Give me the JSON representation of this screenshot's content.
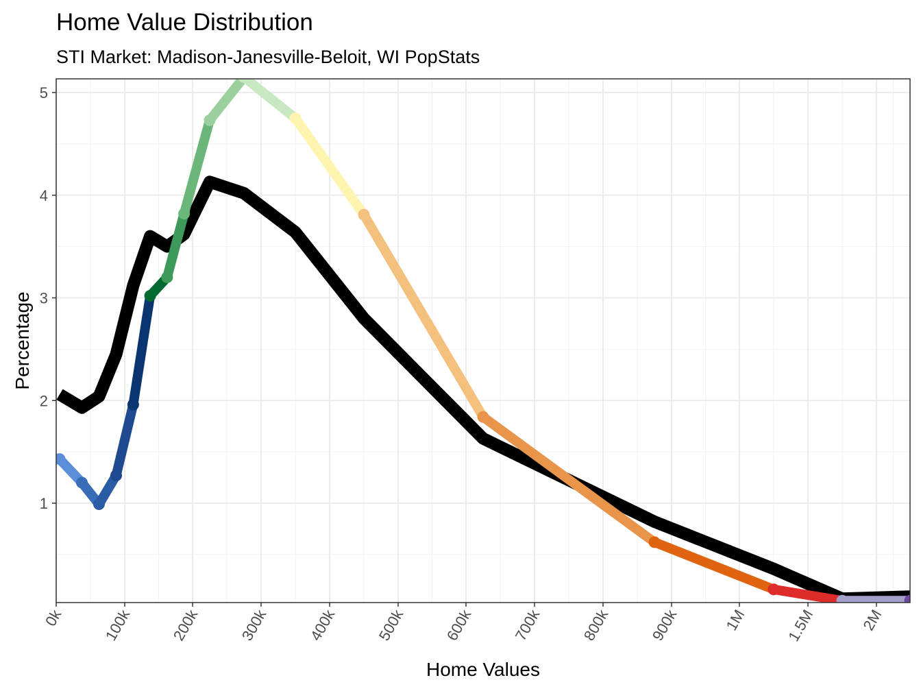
{
  "chart_data": {
    "type": "line",
    "title": "Home Value Distribution",
    "subtitle": "STI Market: Madison-Janesville-Beloit, WI PopStats",
    "xlabel": "Home Values",
    "ylabel": "Percentage",
    "x_ticks": [
      "0k",
      "100k",
      "200k",
      "300k",
      "400k",
      "500k",
      "600k",
      "700k",
      "800k",
      "900k",
      "1M",
      "1.5M",
      "2M"
    ],
    "y_ticks": [
      "1",
      "2",
      "3",
      "4",
      "5"
    ],
    "ylim": [
      0.05,
      5.15
    ],
    "grid": true,
    "legend": "none",
    "series": [
      {
        "color": "#000000",
        "points": [
          {
            "x": "5k",
            "y": 2.06
          },
          {
            "x": "37.5k",
            "y": 1.93
          },
          {
            "x": "62.5k",
            "y": 2.04
          },
          {
            "x": "87.5k",
            "y": 2.45
          },
          {
            "x": "112.5k",
            "y": 3.12
          },
          {
            "x": "137.5k",
            "y": 3.6
          },
          {
            "x": "162.5k",
            "y": 3.5
          },
          {
            "x": "187.5k",
            "y": 3.62
          },
          {
            "x": "225k",
            "y": 4.13
          },
          {
            "x": "275k",
            "y": 4.02
          },
          {
            "x": "350k",
            "y": 3.64
          },
          {
            "x": "450k",
            "y": 2.8
          },
          {
            "x": "625k",
            "y": 1.63
          },
          {
            "x": "875k",
            "y": 0.82
          },
          {
            "x": "1.25M",
            "y": 0.36
          },
          {
            "x": "1.75M",
            "y": 0.07
          },
          {
            "x": "2M+",
            "y": 0.09
          }
        ]
      },
      {
        "points": [
          {
            "x": "5k",
            "y": 1.43,
            "color": "#5b8ed8"
          },
          {
            "x": "37.5k",
            "y": 1.2,
            "color": "#3a6db8"
          },
          {
            "x": "62.5k",
            "y": 0.99,
            "color": "#2a5ca6"
          },
          {
            "x": "87.5k",
            "y": 1.27,
            "color": "#1f4a90"
          },
          {
            "x": "112.5k",
            "y": 1.96,
            "color": "#0b3570"
          },
          {
            "x": "137.5k",
            "y": 3.02,
            "color": "#006a30"
          },
          {
            "x": "162.5k",
            "y": 3.2,
            "color": "#3e9a5a"
          },
          {
            "x": "187.5k",
            "y": 3.82,
            "color": "#6bb77a"
          },
          {
            "x": "225k",
            "y": 4.73,
            "color": "#9bd09e"
          },
          {
            "x": "275k",
            "y": 5.15,
            "color": "#c8e8c2"
          },
          {
            "x": "350k",
            "y": 4.75,
            "color": "#fff3b0"
          },
          {
            "x": "450k",
            "y": 3.81,
            "color": "#f3c07e"
          },
          {
            "x": "625k",
            "y": 1.84,
            "color": "#e8944a"
          },
          {
            "x": "875k",
            "y": 0.62,
            "color": "#e06410"
          },
          {
            "x": "1.25M",
            "y": 0.16,
            "color": "#dd2c2a"
          },
          {
            "x": "1.75M",
            "y": 0.05,
            "color": "#a49fcb"
          },
          {
            "x": "2M+",
            "y": 0.05,
            "color": "#6b4aa0"
          }
        ]
      }
    ]
  }
}
